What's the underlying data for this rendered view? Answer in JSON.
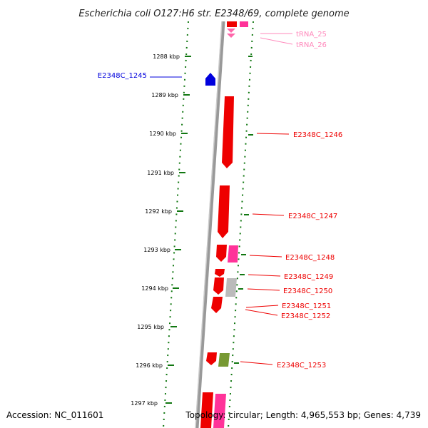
{
  "title": "Escherichia coli O127:H6 str. E2348/69, complete genome",
  "footer": {
    "accession": "Accession: NC_011601",
    "topology": "Topology: circular; Length: 4,965,553 bp; Genes: 4,739"
  },
  "colors": {
    "cds": "#ee0000",
    "cds_left": "#0000dd",
    "trna": "#ff3399",
    "trna_label": "#ff88bb",
    "other": "#bbbbbb",
    "green": "#779933",
    "tick": "#117711",
    "backbone": "#999999"
  },
  "ruler": {
    "tick_labels": [
      "1288 kbp",
      "1289 kbp",
      "1290 kbp",
      "1291 kbp",
      "1292 kbp",
      "1293 kbp",
      "1294 kbp",
      "1295 kbp",
      "1296 kbp",
      "1297 kbp"
    ]
  },
  "features": [
    {
      "label": "tRNA_25",
      "type": "tRNA"
    },
    {
      "label": "tRNA_26",
      "type": "tRNA"
    },
    {
      "label": "E2348C_1245",
      "type": "CDS-left"
    },
    {
      "label": "E2348C_1246",
      "type": "CDS"
    },
    {
      "label": "E2348C_1247",
      "type": "CDS"
    },
    {
      "label": "E2348C_1248",
      "type": "CDS"
    },
    {
      "label": "E2348C_1249",
      "type": "CDS"
    },
    {
      "label": "E2348C_1250",
      "type": "CDS"
    },
    {
      "label": "E2348C_1251",
      "type": "CDS"
    },
    {
      "label": "E2348C_1252",
      "type": "CDS"
    },
    {
      "label": "E2348C_1253",
      "type": "CDS"
    }
  ]
}
